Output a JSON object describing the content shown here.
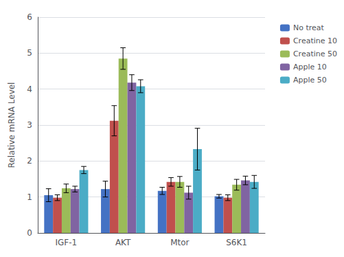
{
  "chart_data": {
    "type": "bar",
    "categories": [
      "IGF-1",
      "AKT",
      "Mtor",
      "S6K1"
    ],
    "series": [
      {
        "name": "No treat",
        "color": "#4472C4",
        "values": [
          1.05,
          1.22,
          1.17,
          1.02
        ],
        "errors": [
          0.18,
          0.22,
          0.1,
          0.05
        ]
      },
      {
        "name": "Creatine 10",
        "color": "#C0504D",
        "values": [
          0.98,
          3.12,
          1.42,
          0.98
        ],
        "errors": [
          0.08,
          0.42,
          0.12,
          0.08
        ]
      },
      {
        "name": "Creatine 50",
        "color": "#9BBB59",
        "values": [
          1.24,
          4.85,
          1.42,
          1.34
        ],
        "errors": [
          0.12,
          0.3,
          0.15,
          0.15
        ]
      },
      {
        "name": "Apple 10",
        "color": "#8064A2",
        "values": [
          1.22,
          4.18,
          1.12,
          1.46
        ],
        "errors": [
          0.08,
          0.22,
          0.18,
          0.12
        ]
      },
      {
        "name": "Apple 50",
        "color": "#4BACC6",
        "values": [
          1.75,
          4.08,
          2.33,
          1.42
        ],
        "errors": [
          0.1,
          0.18,
          0.58,
          0.18
        ]
      }
    ],
    "ylabel": "Relative mRNA Level",
    "ylim": [
      0,
      6
    ],
    "yticks": [
      0,
      1,
      2,
      3,
      4,
      5,
      6
    ],
    "grid": true,
    "legend": "right"
  }
}
